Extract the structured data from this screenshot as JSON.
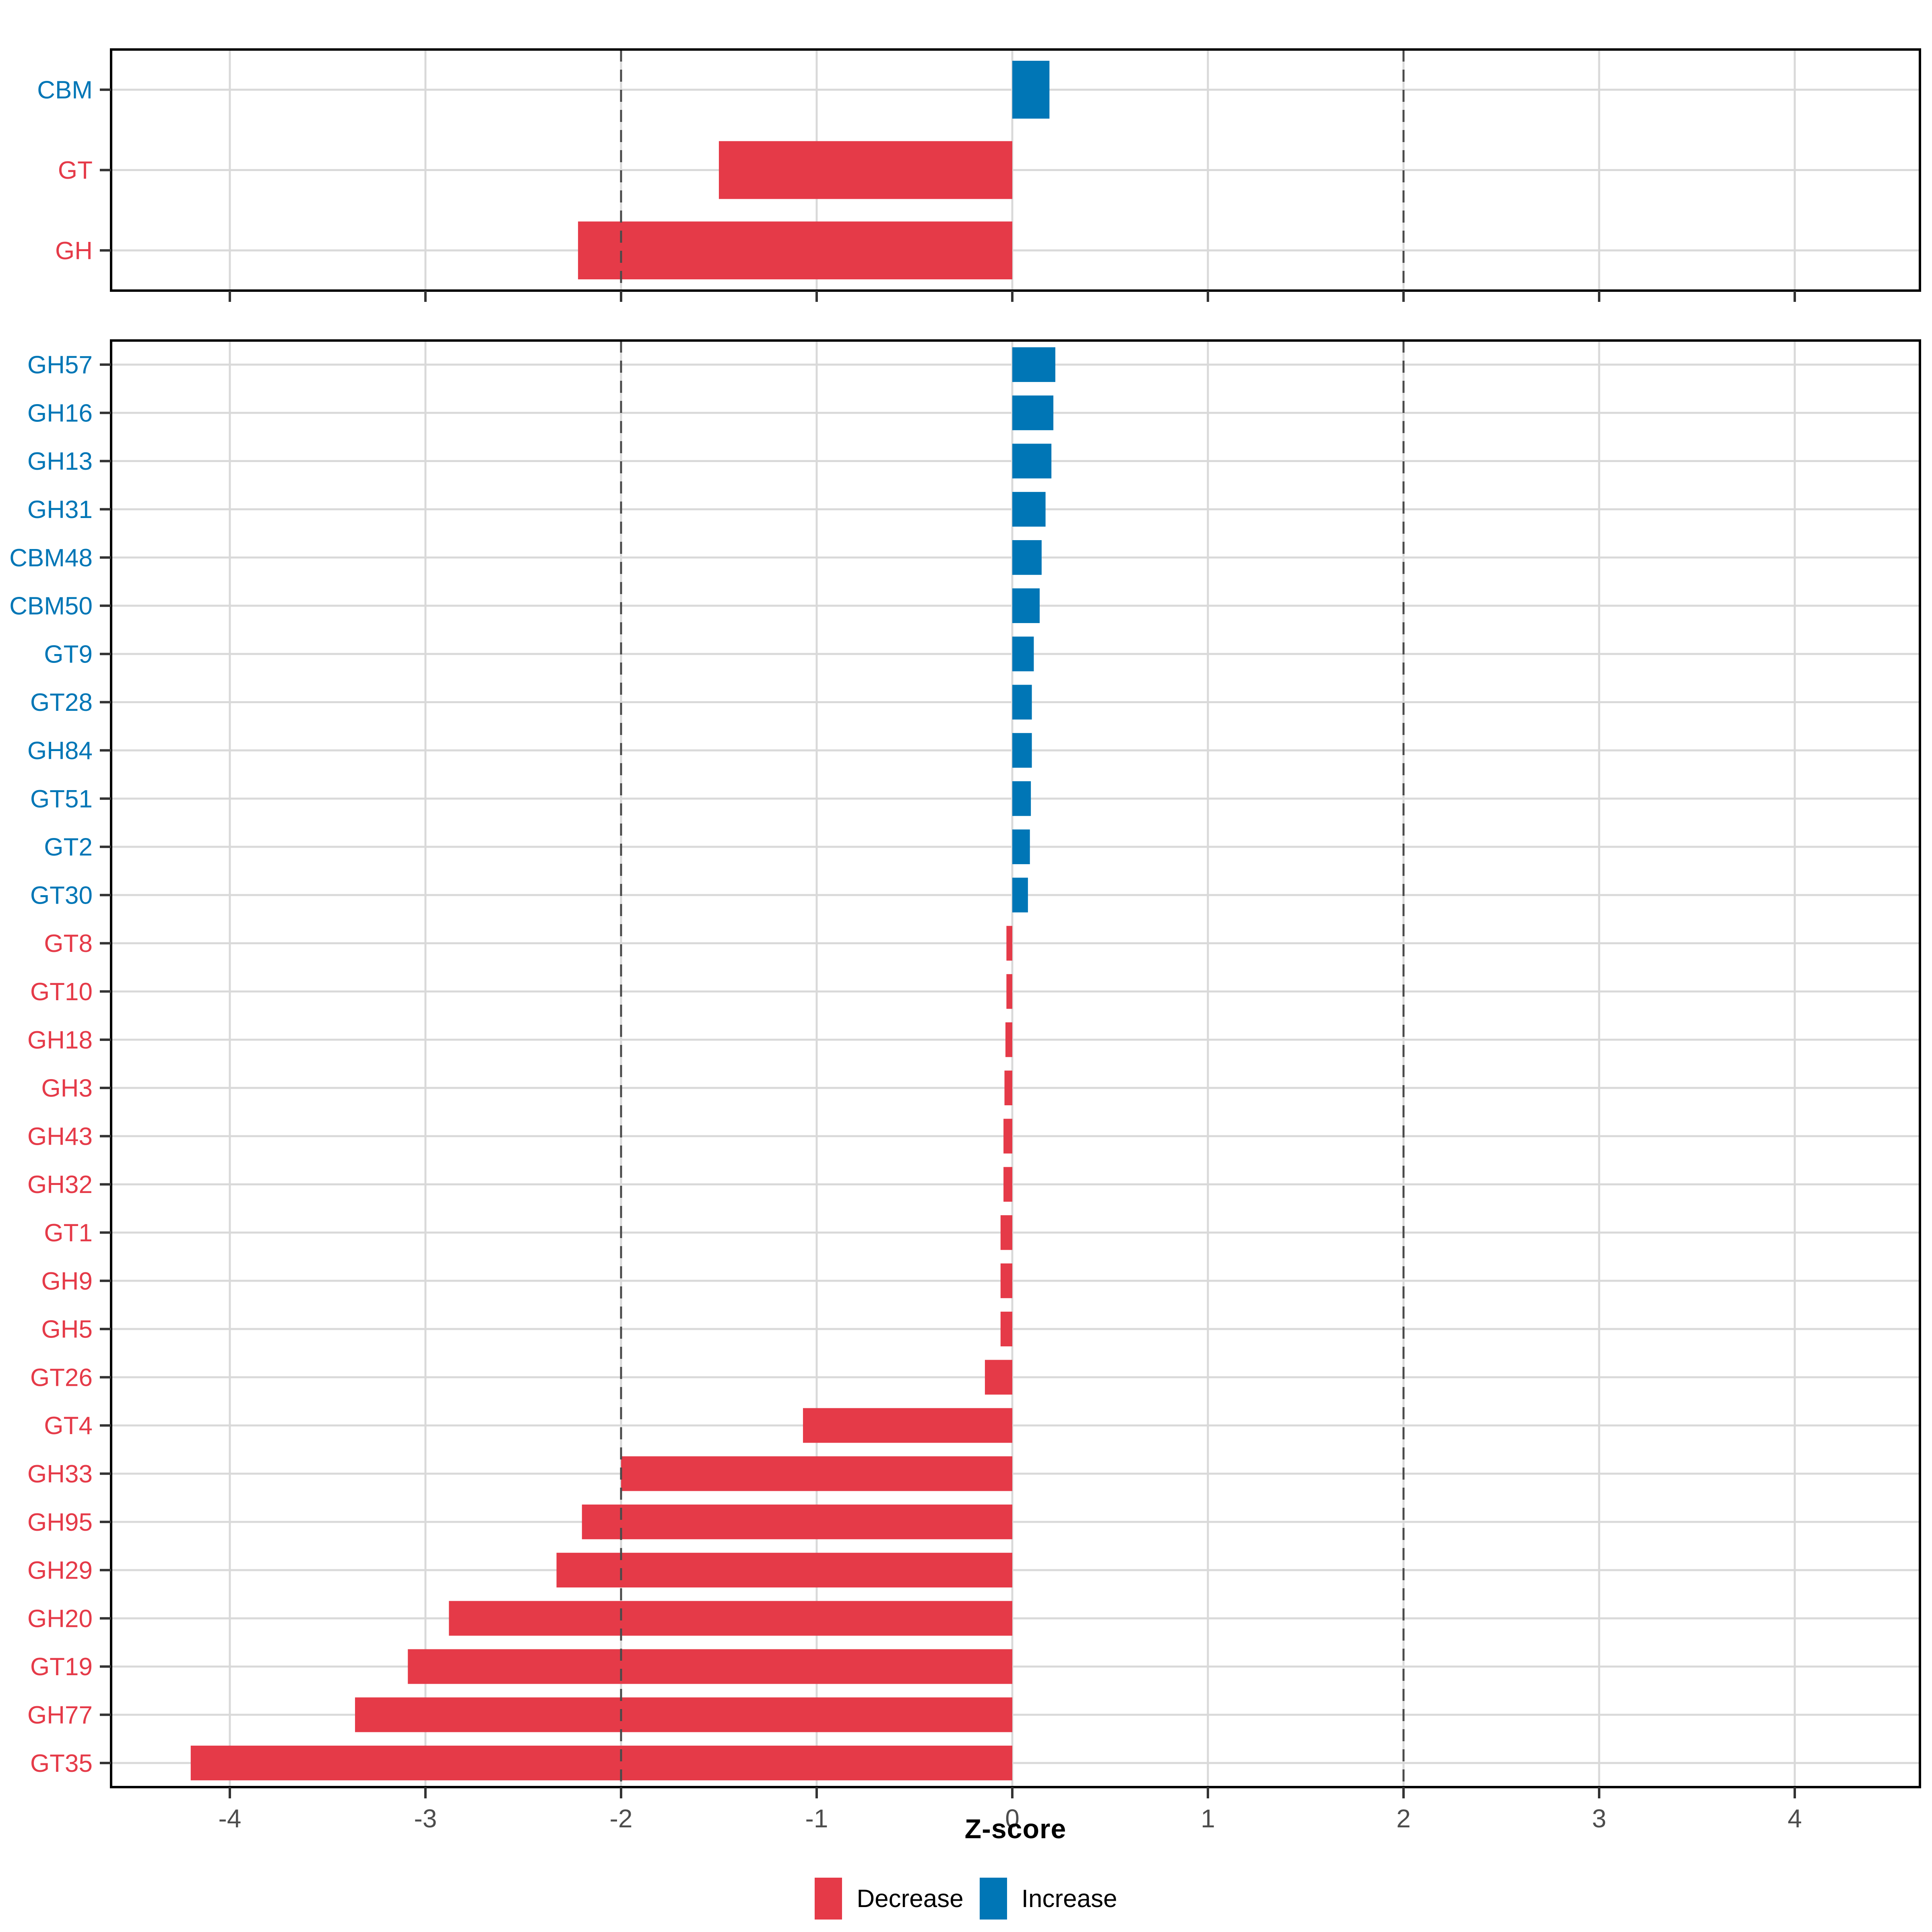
{
  "chart_data": [
    {
      "panel": "cazyme-classes",
      "type": "bar",
      "orientation": "horizontal",
      "categories": [
        "CBM",
        "GT",
        "GH"
      ],
      "values": [
        0.19,
        -1.5,
        -2.22
      ],
      "directions": [
        "Increase",
        "Decrease",
        "Decrease"
      ],
      "show_x_labels": false
    },
    {
      "panel": "cazyme-families",
      "type": "bar",
      "orientation": "horizontal",
      "categories": [
        "GH57",
        "GH16",
        "GH13",
        "GH31",
        "CBM48",
        "CBM50",
        "GT9",
        "GT28",
        "GH84",
        "GT51",
        "GT2",
        "GT30",
        "GT8",
        "GT10",
        "GH18",
        "GH3",
        "GH43",
        "GH32",
        "GT1",
        "GH9",
        "GH5",
        "GT26",
        "GT4",
        "GH33",
        "GH95",
        "GH29",
        "GH20",
        "GT19",
        "GH77",
        "GT35"
      ],
      "values": [
        0.22,
        0.21,
        0.2,
        0.17,
        0.15,
        0.14,
        0.11,
        0.1,
        0.1,
        0.095,
        0.09,
        0.08,
        -0.03,
        -0.03,
        -0.035,
        -0.04,
        -0.045,
        -0.045,
        -0.06,
        -0.06,
        -0.06,
        -0.14,
        -1.07,
        -2.0,
        -2.2,
        -2.33,
        -2.88,
        -3.09,
        -3.36,
        -4.2
      ],
      "directions": [
        "Increase",
        "Increase",
        "Increase",
        "Increase",
        "Increase",
        "Increase",
        "Increase",
        "Increase",
        "Increase",
        "Increase",
        "Increase",
        "Increase",
        "Decrease",
        "Decrease",
        "Decrease",
        "Decrease",
        "Decrease",
        "Decrease",
        "Decrease",
        "Decrease",
        "Decrease",
        "Decrease",
        "Decrease",
        "Decrease",
        "Decrease",
        "Decrease",
        "Decrease",
        "Decrease",
        "Decrease",
        "Decrease"
      ],
      "show_x_labels": true
    }
  ],
  "axis": {
    "xlabel": "Z-score",
    "ticks": [
      -4,
      -3,
      -2,
      -1,
      0,
      1,
      2,
      3,
      4
    ],
    "tick_labels": [
      "-4",
      "-3",
      "-2",
      "-1",
      "0",
      "1",
      "2",
      "3",
      "4"
    ],
    "xlim": [
      -4.61,
      4.64
    ],
    "reference_lines": [
      -2,
      2
    ],
    "grid": true
  },
  "legend": {
    "items": [
      {
        "label": "Decrease",
        "color": "#E53A48"
      },
      {
        "label": "Increase",
        "color": "#0076B6"
      }
    ]
  },
  "colors": {
    "decrease": "#E53A48",
    "increase": "#0076B6",
    "gridline": "#D9D9D9",
    "axis_text": "#4D4D4D",
    "tick_mark": "#333333",
    "reference_line": "#4A4A4A",
    "panel_border": "#000000",
    "background": "#FFFFFF"
  }
}
